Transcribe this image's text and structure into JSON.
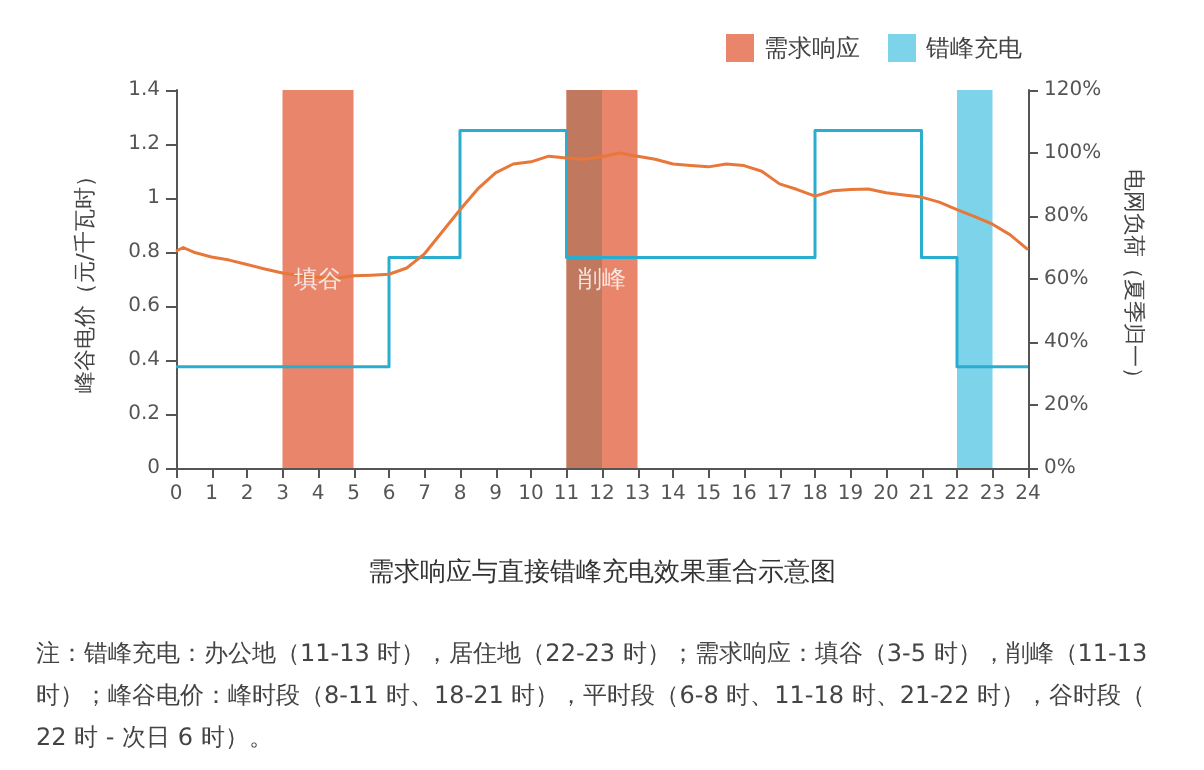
{
  "chart_data": {
    "type": "line",
    "title": "需求响应与直接错峰充电效果重合示意图",
    "ylabel": "峰谷电价（元/千瓦时）",
    "y2label": "电网负荷（夏季归一）",
    "xlim": [
      0,
      24
    ],
    "xticks": [
      0,
      1,
      2,
      3,
      4,
      5,
      6,
      7,
      8,
      9,
      10,
      11,
      12,
      13,
      14,
      15,
      16,
      17,
      18,
      19,
      20,
      21,
      22,
      23,
      24
    ],
    "ylim": [
      0,
      1.4
    ],
    "yticks": [
      0,
      0.2,
      0.4,
      0.6,
      0.8,
      1.0,
      1.2,
      1.4
    ],
    "y2lim": [
      0,
      120
    ],
    "y2ticks": [
      {
        "value": 0,
        "label": "0%"
      },
      {
        "value": 20,
        "label": "20%"
      },
      {
        "value": 40,
        "label": "40%"
      },
      {
        "value": 60,
        "label": "60%"
      },
      {
        "value": 80,
        "label": "80%"
      },
      {
        "value": 100,
        "label": "100%"
      },
      {
        "value": 120,
        "label": "120%"
      }
    ],
    "series": [
      {
        "type": "step",
        "color": "#2aaed0",
        "x": [
          0,
          6,
          8,
          11,
          18,
          21,
          22,
          24
        ],
        "values": [
          0.375,
          0.78,
          1.25,
          0.78,
          1.25,
          0.78,
          0.375,
          0.375
        ]
      },
      {
        "axis": "y2",
        "color": "#e8773a",
        "x": [
          0,
          0.2,
          0.5,
          1,
          1.5,
          2,
          2.5,
          3,
          3.5,
          4,
          4.5,
          5,
          5.5,
          6,
          6.5,
          7,
          7.5,
          8,
          8.5,
          9,
          9.5,
          10,
          10.5,
          11,
          11.5,
          12,
          12.5,
          13,
          13.5,
          14,
          14.5,
          15,
          15.5,
          16,
          16.5,
          17,
          17.5,
          18,
          18.5,
          19,
          19.5,
          20,
          20.5,
          21,
          21.5,
          22,
          22.5,
          23,
          23.5,
          24
        ],
        "values": [
          68.8,
          70,
          68.5,
          67,
          66,
          64.6,
          63.2,
          61.9,
          61,
          60.5,
          60.2,
          61,
          61.2,
          61.5,
          63.5,
          68,
          75,
          82,
          88.6,
          93.7,
          96.5,
          97.2,
          99,
          98.4,
          98,
          98.8,
          100,
          99,
          98,
          96.5,
          96,
          95.6,
          96.5,
          96,
          94.2,
          90.2,
          88.4,
          86.3,
          88,
          88.4,
          88.6,
          87.4,
          86.7,
          86,
          84.4,
          82,
          79.8,
          77.4,
          74,
          69.3
        ]
      }
    ],
    "bands": [
      {
        "axis": "x",
        "from": 3,
        "to": 5,
        "label": "需求响应",
        "color": "#e8856a"
      },
      {
        "axis": "x",
        "from": 11,
        "to": 13,
        "color": "#e8856a"
      },
      {
        "axis": "x",
        "from": 22,
        "to": 23,
        "label": "错峰充电",
        "color": "#7dd3ea"
      },
      {
        "axis": "x",
        "from": 11,
        "to": 12,
        "color": "#c0785f"
      }
    ],
    "annotations": [
      {
        "text": "填谷",
        "x": 4,
        "y": 0.7
      },
      {
        "text": "削峰",
        "x": 12,
        "y": 0.7
      },
      "注：错峰充电：办公地（11-13 时），居住地（22-23 时）；需求响应：填谷（3-5 时），削峰（11-13 时）；峰谷电价：峰时段（8-11 时、18-21 时），平时段（6-8 时、11-18 时、21-22 时），谷时段（22 时 - 次日 6 时）。"
    ],
    "legend": "top right",
    "grid": false,
    "marker": "none",
    "line_style": "solid"
  }
}
